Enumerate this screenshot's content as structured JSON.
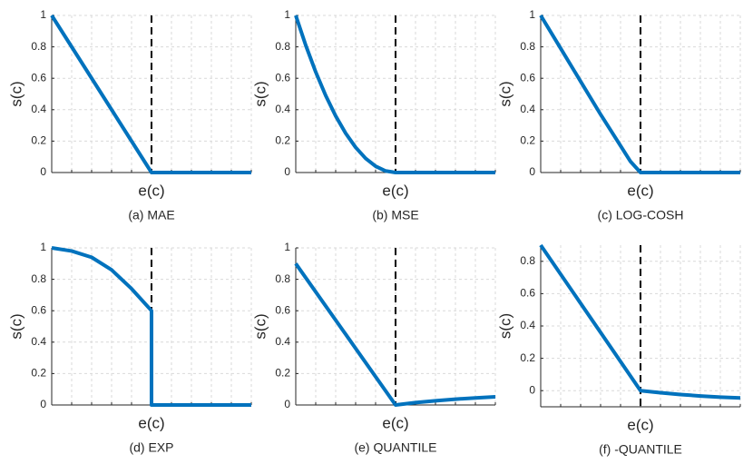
{
  "chart_data": [
    {
      "type": "line",
      "caption": "(a) MAE",
      "xlabel": "e(c)",
      "ylabel": "s(c)",
      "xlim": [
        0,
        1
      ],
      "ylim": [
        0,
        1
      ],
      "yticks": [
        0,
        0.2,
        0.4,
        0.6,
        0.8,
        1
      ],
      "grid": true,
      "threshold_x": 0.5,
      "series": [
        {
          "color": "#0072bd",
          "x": [
            0,
            0.5,
            1
          ],
          "values": [
            1,
            0,
            0
          ]
        }
      ]
    },
    {
      "type": "line",
      "caption": "(b) MSE",
      "xlabel": "e(c)",
      "ylabel": "s(c)",
      "xlim": [
        0,
        1
      ],
      "ylim": [
        0,
        1
      ],
      "yticks": [
        0,
        0.2,
        0.4,
        0.6,
        0.8,
        1
      ],
      "grid": true,
      "threshold_x": 0.5,
      "series": [
        {
          "color": "#0072bd",
          "x": [
            0,
            0.05,
            0.1,
            0.15,
            0.2,
            0.25,
            0.3,
            0.35,
            0.4,
            0.45,
            0.5,
            1
          ],
          "values": [
            1,
            0.81,
            0.64,
            0.49,
            0.36,
            0.25,
            0.16,
            0.09,
            0.04,
            0.01,
            0,
            0
          ]
        }
      ]
    },
    {
      "type": "line",
      "caption": "(c) LOG-COSH",
      "xlabel": "e(c)",
      "ylabel": "s(c)",
      "xlim": [
        0,
        1
      ],
      "ylim": [
        0,
        1
      ],
      "yticks": [
        0,
        0.2,
        0.4,
        0.6,
        0.8,
        1
      ],
      "grid": true,
      "threshold_x": 0.5,
      "series": [
        {
          "color": "#0072bd",
          "x": [
            0,
            0.1,
            0.2,
            0.3,
            0.4,
            0.45,
            0.5,
            1
          ],
          "values": [
            1,
            0.79,
            0.58,
            0.37,
            0.17,
            0.07,
            0,
            0
          ]
        }
      ]
    },
    {
      "type": "line",
      "caption": "(d) EXP",
      "xlabel": "e(c)",
      "ylabel": "s(c)",
      "xlim": [
        0,
        1
      ],
      "ylim": [
        0,
        1
      ],
      "yticks": [
        0,
        0.2,
        0.4,
        0.6,
        0.8,
        1
      ],
      "grid": true,
      "threshold_x": 0.5,
      "series": [
        {
          "color": "#0072bd",
          "x": [
            0,
            0.1,
            0.2,
            0.3,
            0.4,
            0.5,
            0.5,
            1
          ],
          "values": [
            1,
            0.98,
            0.94,
            0.86,
            0.74,
            0.6,
            0,
            0
          ]
        }
      ]
    },
    {
      "type": "line",
      "caption": "(e) QUANTILE",
      "xlabel": "e(c)",
      "ylabel": "s(c)",
      "xlim": [
        0,
        1
      ],
      "ylim": [
        0,
        1
      ],
      "yticks": [
        0,
        0.2,
        0.4,
        0.6,
        0.8,
        1
      ],
      "grid": true,
      "threshold_x": 0.5,
      "series": [
        {
          "color": "#0072bd",
          "x": [
            0,
            0.5,
            0.6,
            0.7,
            0.8,
            0.9,
            1
          ],
          "values": [
            0.9,
            0,
            0.015,
            0.027,
            0.037,
            0.045,
            0.052
          ]
        }
      ]
    },
    {
      "type": "line",
      "caption": "(f) -QUANTILE",
      "xlabel": "e(c)",
      "ylabel": "s(c)",
      "xlim": [
        0,
        1
      ],
      "ylim": [
        -0.1,
        0.9
      ],
      "yticks": [
        0,
        0.2,
        0.4,
        0.6,
        0.8
      ],
      "grid": true,
      "threshold_x": 0.5,
      "series": [
        {
          "color": "#0072bd",
          "x": [
            0,
            0.5,
            0.6,
            0.7,
            0.8,
            0.9,
            1
          ],
          "values": [
            0.9,
            0,
            -0.013,
            -0.024,
            -0.033,
            -0.04,
            -0.045
          ]
        }
      ]
    }
  ]
}
